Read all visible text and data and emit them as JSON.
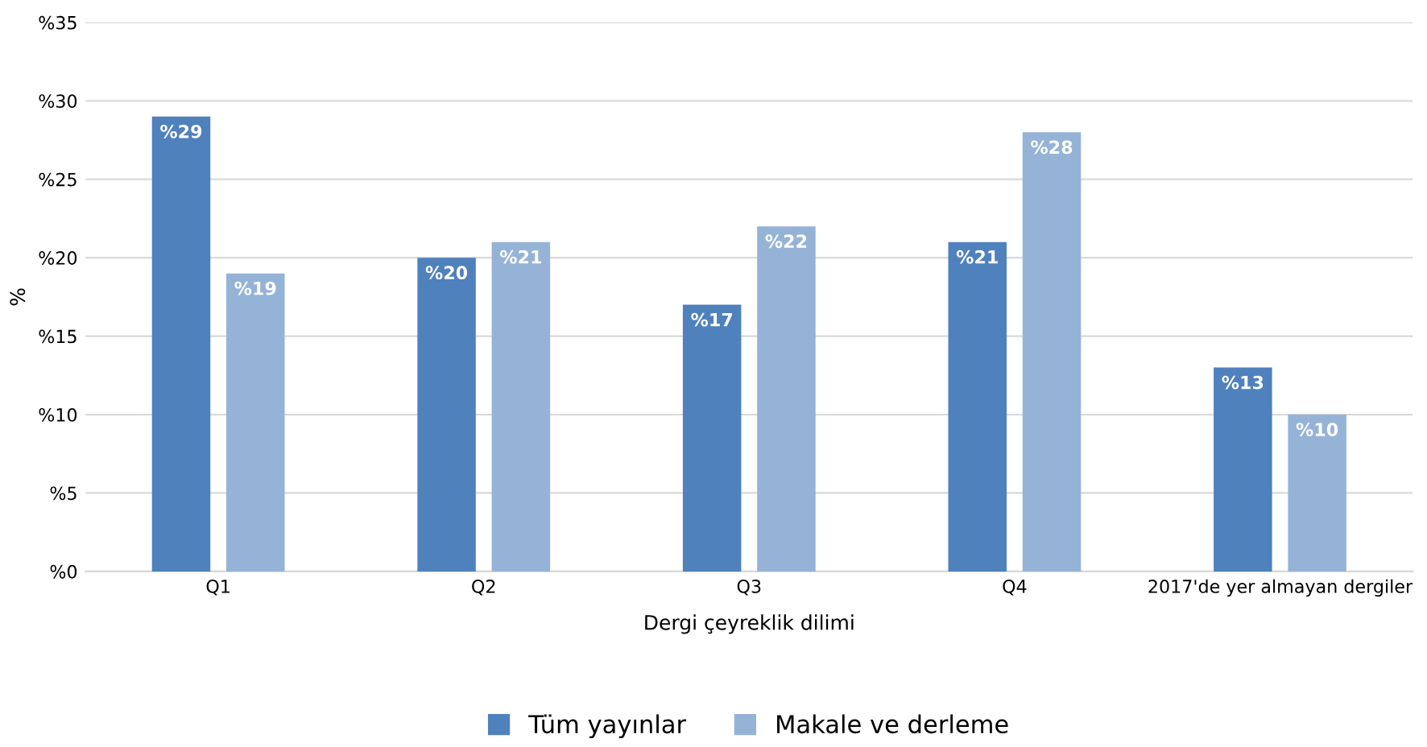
{
  "chart_data": {
    "type": "bar",
    "xlabel": "Dergi çeyreklik dilimi",
    "ylabel": "%",
    "categories": [
      "Q1",
      "Q2",
      "Q3",
      "Q4",
      "2017'de yer almayan dergiler"
    ],
    "series": [
      {
        "name": "Tüm yayınlar",
        "color": "#4f81bd",
        "values": [
          29,
          20,
          17,
          21,
          13
        ],
        "value_labels": [
          "%29",
          "%20",
          "%17",
          "%21",
          "%13"
        ]
      },
      {
        "name": "Makale ve derleme",
        "color": "#95b3d7",
        "values": [
          19,
          21,
          22,
          28,
          10
        ],
        "value_labels": [
          "%19",
          "%21",
          "%22",
          "%28",
          "%10"
        ]
      }
    ],
    "ylim": [
      0,
      35
    ],
    "yticks": [
      {
        "value": 0,
        "label": "%0"
      },
      {
        "value": 5,
        "label": "%5"
      },
      {
        "value": 10,
        "label": "%10"
      },
      {
        "value": 15,
        "label": "%15"
      },
      {
        "value": 20,
        "label": "%20"
      },
      {
        "value": 25,
        "label": "%25"
      },
      {
        "value": 30,
        "label": "%30"
      },
      {
        "value": 35,
        "label": "%35"
      }
    ],
    "grid": "y",
    "legend": "bottom"
  }
}
